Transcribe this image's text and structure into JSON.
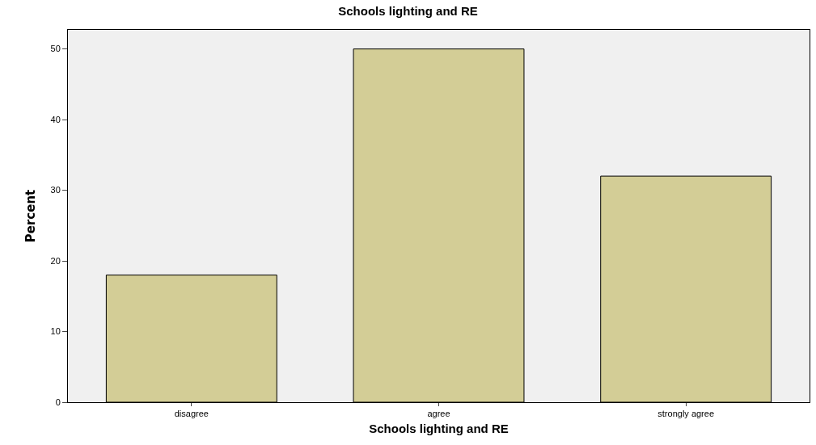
{
  "chart_data": {
    "type": "bar",
    "title": "Schools lighting and RE",
    "xlabel": "Schools lighting and RE",
    "ylabel": "Percent",
    "categories": [
      "disagree",
      "agree",
      "strongly agree"
    ],
    "values": [
      18,
      50,
      32
    ],
    "color": "#d3cd96",
    "ylim": [
      0,
      52.7
    ],
    "yticks": [
      0,
      10,
      20,
      30,
      40,
      50
    ],
    "grid": false,
    "legend": false
  }
}
